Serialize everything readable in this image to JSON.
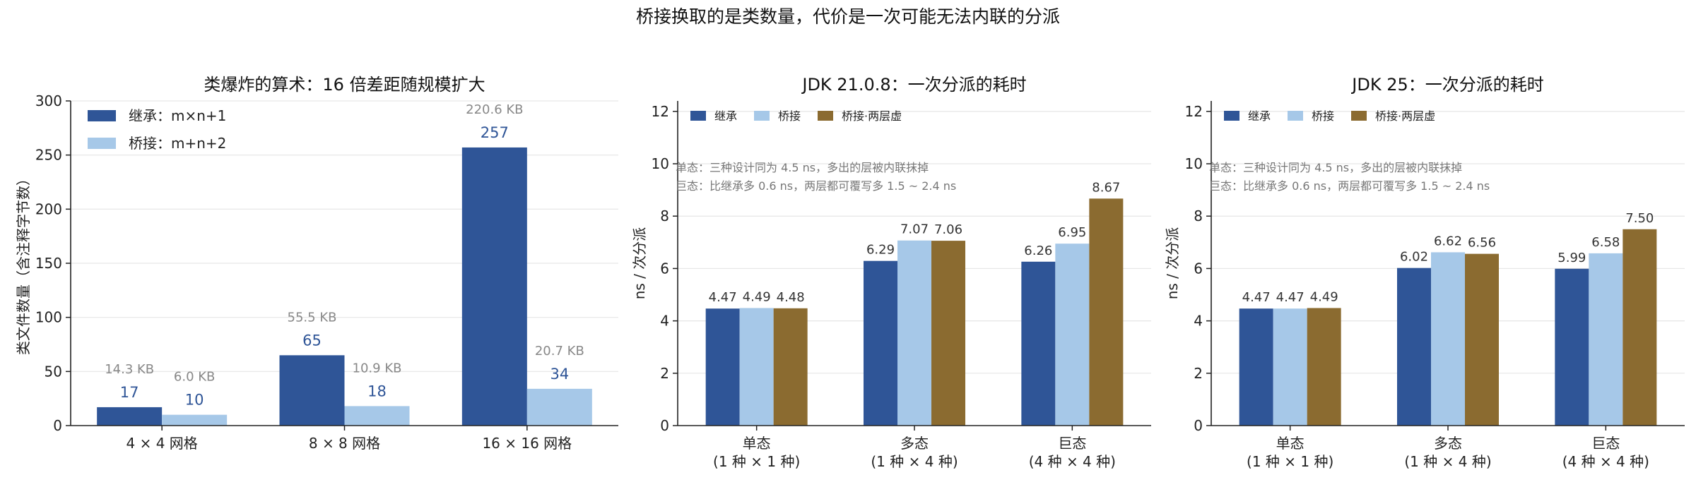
{
  "figure": {
    "title": "桥接换取的是类数量，代价是一次可能无法内联的分派"
  },
  "colors": {
    "inherit": "#2f5597",
    "bridge": "#a6c8e8",
    "bridge_two": "#8b6b30",
    "size_label": "#888888",
    "value_label": "#2f5597",
    "annotation": "#777777",
    "grid": "#e6e6e6",
    "axis": "#222222"
  },
  "chart_data": [
    {
      "type": "bar",
      "title": "类爆炸的算术：16 倍差距随规模扩大",
      "xlabel": "",
      "ylabel": "类文件数量（含注释字节数）",
      "categories": [
        "4 × 4 网格",
        "8 × 8 网格",
        "16 × 16 网格"
      ],
      "series": [
        {
          "name": "继承：m×n+1",
          "values": [
            17,
            65,
            257
          ],
          "size_labels": [
            "14.3 KB",
            "55.5 KB",
            "220.6 KB"
          ]
        },
        {
          "name": "桥接：m+n+2",
          "values": [
            10,
            18,
            34
          ],
          "size_labels": [
            "6.0 KB",
            "10.9 KB",
            "20.7 KB"
          ]
        }
      ],
      "ylim": [
        0,
        300
      ],
      "yticks": [
        0,
        50,
        100,
        150,
        200,
        250,
        300
      ],
      "grid": true,
      "legend": "top-left"
    },
    {
      "type": "bar",
      "title": "JDK 21.0.8：一次分派的耗时",
      "xlabel": "",
      "ylabel": "ns / 次分派",
      "categories": [
        "单态\n(1 种 × 1 种)",
        "多态\n(1 种 × 4 种)",
        "巨态\n(4 种 × 4 种)"
      ],
      "series": [
        {
          "name": "继承",
          "values": [
            4.47,
            6.29,
            6.26
          ],
          "labels": [
            "4.47",
            "6.29",
            "6.26"
          ]
        },
        {
          "name": "桥接",
          "values": [
            4.49,
            7.07,
            6.95
          ],
          "labels": [
            "4.49",
            "7.07",
            "6.95"
          ]
        },
        {
          "name": "桥接·两层虚",
          "values": [
            4.48,
            7.06,
            8.67
          ],
          "labels": [
            "4.48",
            "7.06",
            "8.67"
          ]
        }
      ],
      "annotations": [
        "单态：三种设计同为 4.5 ns，多出的层被内联抹掉",
        "巨态：比继承多 0.6 ns，两层都可覆写多 1.5 ~ 2.4 ns"
      ],
      "ylim": [
        0,
        12.4
      ],
      "yticks": [
        0,
        2,
        4,
        6,
        8,
        10,
        12
      ],
      "grid": true,
      "legend": "top-left"
    },
    {
      "type": "bar",
      "title": "JDK 25：一次分派的耗时",
      "xlabel": "",
      "ylabel": "ns / 次分派",
      "categories": [
        "单态\n(1 种 × 1 种)",
        "多态\n(1 种 × 4 种)",
        "巨态\n(4 种 × 4 种)"
      ],
      "series": [
        {
          "name": "继承",
          "values": [
            4.47,
            6.02,
            5.99
          ],
          "labels": [
            "4.47",
            "6.02",
            "5.99"
          ]
        },
        {
          "name": "桥接",
          "values": [
            4.47,
            6.62,
            6.58
          ],
          "labels": [
            "4.47",
            "6.62",
            "6.58"
          ]
        },
        {
          "name": "桥接·两层虚",
          "values": [
            4.49,
            6.56,
            7.5
          ],
          "labels": [
            "4.49",
            "6.56",
            "7.50"
          ]
        }
      ],
      "annotations": [
        "单态：三种设计同为 4.5 ns，多出的层被内联抹掉",
        "巨态：比继承多 0.6 ns，两层都可覆写多 1.5 ~ 2.4 ns"
      ],
      "ylim": [
        0,
        12.4
      ],
      "yticks": [
        0,
        2,
        4,
        6,
        8,
        10,
        12
      ],
      "grid": true,
      "legend": "top-left"
    }
  ]
}
